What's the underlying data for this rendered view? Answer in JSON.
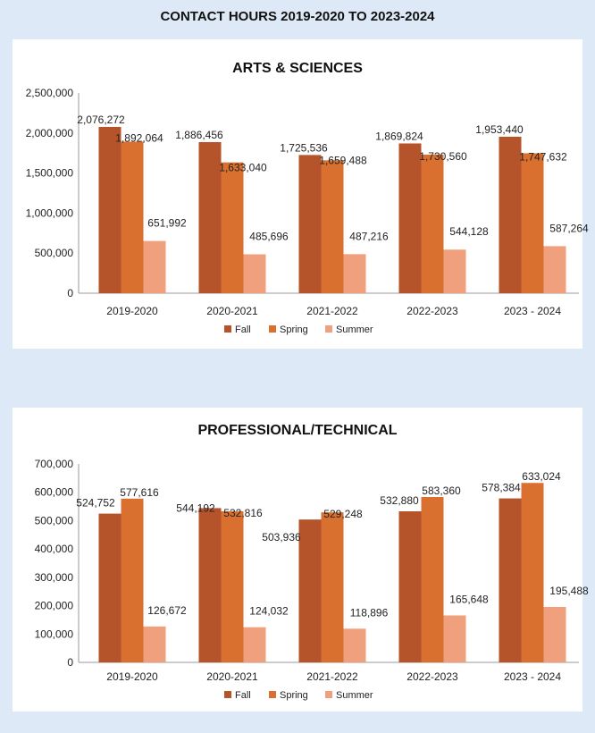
{
  "page_title": "CONTACT HOURS 2019-2020 TO 2023-2024",
  "colors": {
    "fall": "#b5532a",
    "spring": "#d9702f",
    "summer": "#f0a07c",
    "background": "#dde9f6",
    "panel": "#ffffff"
  },
  "chart_data": [
    {
      "type": "bar",
      "title": "ARTS & SCIENCES",
      "categories": [
        "2019-2020",
        "2020-2021",
        "2021-2022",
        "2022-2023",
        "2023 - 2024"
      ],
      "series": [
        {
          "name": "Fall",
          "values": [
            2076272,
            1886456,
            1725536,
            1869824,
            1953440
          ]
        },
        {
          "name": "Spring",
          "values": [
            1892064,
            1633040,
            1659488,
            1730560,
            1747632
          ]
        },
        {
          "name": "Summer",
          "values": [
            651992,
            485696,
            487216,
            544128,
            587264
          ]
        }
      ],
      "data_labels": [
        [
          "2,076,272",
          "1,886,456",
          "1,725,536",
          "1,869,824",
          "1,953,440"
        ],
        [
          "1,892,064",
          "1,633,040",
          "1,659,488",
          "1,730,560",
          "1,747,632"
        ],
        [
          "651,992",
          "485,696",
          "487,216",
          "544,128",
          "587,264"
        ]
      ],
      "yticks": [
        0,
        500000,
        1000000,
        1500000,
        2000000,
        2500000
      ],
      "ytick_labels": [
        "0",
        "500,000",
        "1,000,000",
        "1,500,000",
        "2,000,000",
        "2,500,000"
      ],
      "ylim": [
        0,
        2500000
      ],
      "legend_position": "bottom",
      "xlabel": "",
      "ylabel": ""
    },
    {
      "type": "bar",
      "title": "PROFESSIONAL/TECHNICAL",
      "categories": [
        "2019-2020",
        "2020-2021",
        "2021-2022",
        "2022-2023",
        "2023 - 2024"
      ],
      "series": [
        {
          "name": "Fall",
          "values": [
            524752,
            544192,
            503936,
            532880,
            578384
          ]
        },
        {
          "name": "Spring",
          "values": [
            577616,
            532816,
            529248,
            583360,
            633024
          ]
        },
        {
          "name": "Summer",
          "values": [
            126672,
            124032,
            118896,
            165648,
            195488
          ]
        }
      ],
      "data_labels": [
        [
          "524,752",
          "544,192",
          "503,936",
          "532,880",
          "578,384"
        ],
        [
          "577,616",
          "532,816",
          "529,248",
          "583,360",
          "633,024"
        ],
        [
          "126,672",
          "124,032",
          "118,896",
          "165,648",
          "195,488"
        ]
      ],
      "yticks": [
        0,
        100000,
        200000,
        300000,
        400000,
        500000,
        600000,
        700000
      ],
      "ytick_labels": [
        "0",
        "100,000",
        "200,000",
        "300,000",
        "400,000",
        "500,000",
        "600,000",
        "700,000"
      ],
      "ylim": [
        0,
        700000
      ],
      "legend_position": "bottom",
      "xlabel": "",
      "ylabel": ""
    }
  ]
}
